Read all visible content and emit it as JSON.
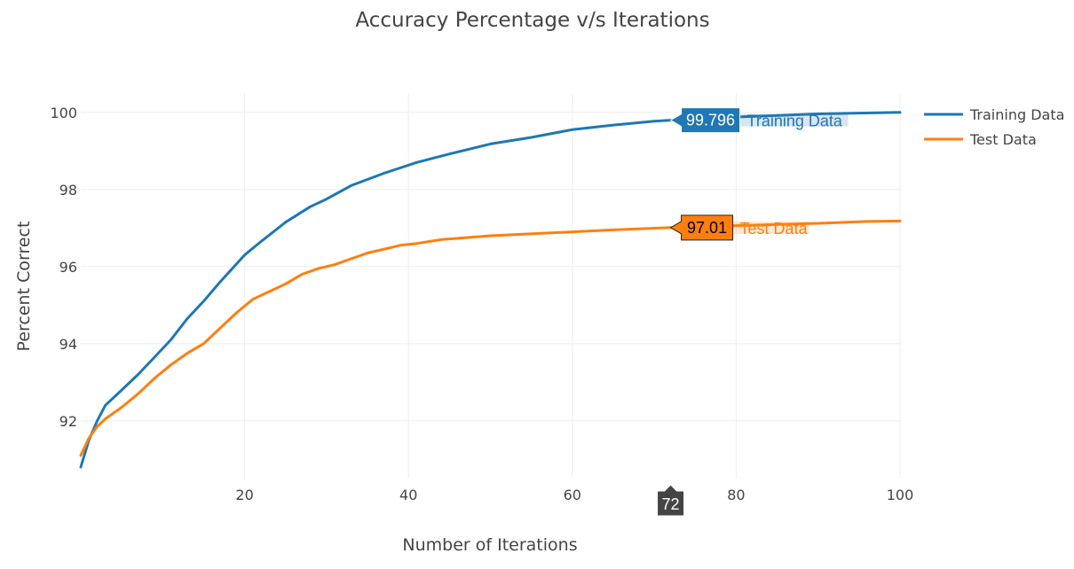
{
  "chart_data": {
    "type": "line",
    "title": "Accuracy Percentage v/s Iterations",
    "xlabel": "Number of Iterations",
    "ylabel": "Percent Correct",
    "xlim": [
      0,
      100
    ],
    "ylim": [
      90.5,
      100.5
    ],
    "xticks": [
      "20",
      "40",
      "60",
      "80",
      "100"
    ],
    "yticks": [
      "92",
      "94",
      "96",
      "98",
      "100"
    ],
    "grid": true,
    "legend": "right-top",
    "series": [
      {
        "name": "Training Data",
        "color": "#1f77b4",
        "x": [
          0,
          1,
          2,
          3,
          5,
          7,
          9,
          11,
          13,
          15,
          17,
          20,
          22,
          25,
          28,
          30,
          33,
          37,
          41,
          45,
          50,
          55,
          60,
          65,
          70,
          72,
          80,
          90,
          100
        ],
        "y": [
          90.8,
          91.5,
          92.0,
          92.4,
          92.8,
          93.2,
          93.65,
          94.1,
          94.65,
          95.1,
          95.6,
          96.3,
          96.65,
          97.15,
          97.55,
          97.75,
          98.1,
          98.42,
          98.7,
          98.92,
          99.18,
          99.35,
          99.55,
          99.67,
          99.77,
          99.796,
          99.88,
          99.96,
          100.0
        ]
      },
      {
        "name": "Test Data",
        "color": "#ff7f0e",
        "x": [
          0,
          1,
          2,
          3,
          5,
          7,
          9,
          11,
          13,
          15,
          17,
          19,
          21,
          23,
          25,
          27,
          29,
          31,
          33,
          35,
          37,
          39,
          41,
          44,
          50,
          60,
          65,
          72,
          80,
          90,
          96,
          100
        ],
        "y": [
          91.1,
          91.55,
          91.85,
          92.05,
          92.35,
          92.7,
          93.1,
          93.45,
          93.75,
          94.0,
          94.4,
          94.8,
          95.15,
          95.35,
          95.55,
          95.8,
          95.95,
          96.05,
          96.2,
          96.35,
          96.45,
          96.55,
          96.6,
          96.7,
          96.8,
          96.9,
          96.95,
          97.01,
          97.06,
          97.12,
          97.17,
          97.18
        ]
      }
    ],
    "hover": {
      "x_label": "72",
      "points": [
        {
          "series": "Training Data",
          "x": 72,
          "y": 99.796,
          "label": "99.796",
          "name": "Training Data"
        },
        {
          "series": "Test Data",
          "x": 72,
          "y": 97.01,
          "label": "97.01",
          "name": "Test Data"
        }
      ]
    }
  }
}
